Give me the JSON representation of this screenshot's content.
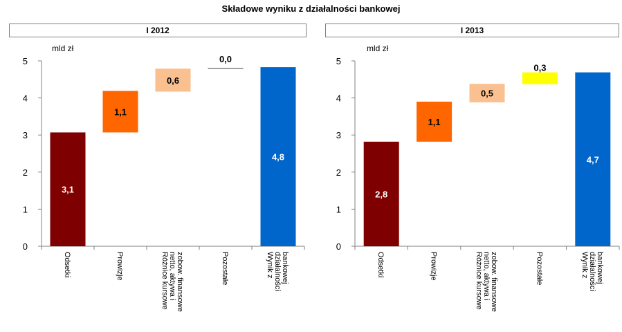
{
  "title": "Składowe wyniku z działalności bankowej",
  "chart_data": [
    {
      "type": "bar",
      "subtype": "waterfall",
      "title": "I 2012",
      "unit_label": "mld zł",
      "ylim": [
        0,
        5
      ],
      "y_ticks": [
        "0",
        "1",
        "2",
        "3",
        "4",
        "5"
      ],
      "grid": false,
      "categories": [
        [
          "Odsetki"
        ],
        [
          "Prowizje"
        ],
        [
          "Różnice kursowe",
          "netto, aktywa i",
          "zobow. finansowe"
        ],
        [
          "Pozostałe"
        ],
        [
          "Wynik z",
          "działalności",
          "bankowej"
        ]
      ],
      "values": [
        3.07,
        1.12,
        0.62,
        0.02,
        4.83
      ],
      "bar_starts": [
        0,
        3.07,
        4.17,
        4.79,
        0
      ],
      "value_labels": [
        "3,1",
        "1,1",
        "0,6",
        "0,0",
        "4,8"
      ],
      "colors": [
        "#7f0000",
        "#ff6600",
        "#fac090",
        "#808080",
        "#0066cc"
      ],
      "label_colors": [
        "#ffffff",
        "#000000",
        "#000000",
        "#000000",
        "#ffffff"
      ]
    },
    {
      "type": "bar",
      "subtype": "waterfall",
      "title": "I 2013",
      "unit_label": "mld zł",
      "ylim": [
        0,
        5
      ],
      "y_ticks": [
        "0",
        "1",
        "2",
        "3",
        "4",
        "5"
      ],
      "grid": false,
      "categories": [
        [
          "Odsetki"
        ],
        [
          "Prowizje"
        ],
        [
          "Różnice kursowe",
          "netto, aktywa i",
          "zobow. finansowe"
        ],
        [
          "Pozostałe"
        ],
        [
          "Wynik z",
          "działalności",
          "bankowej"
        ]
      ],
      "values": [
        2.82,
        1.08,
        0.5,
        0.32,
        4.69
      ],
      "bar_starts": [
        0,
        2.82,
        3.88,
        4.37,
        0
      ],
      "value_labels": [
        "2,8",
        "1,1",
        "0,5",
        "0,3",
        "4,7"
      ],
      "colors": [
        "#7f0000",
        "#ff6600",
        "#fac090",
        "#ffff00",
        "#0066cc"
      ],
      "label_colors": [
        "#ffffff",
        "#000000",
        "#000000",
        "#000000",
        "#ffffff"
      ]
    }
  ]
}
